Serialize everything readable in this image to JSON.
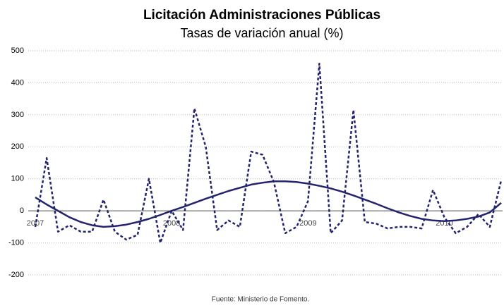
{
  "chart_data": {
    "type": "line",
    "title": "Licitación Administraciones Públicas",
    "subtitle": "Tasas de variación anual (%)",
    "source": "Fuente: Ministerio de Fomento.",
    "categories": [
      "2007",
      null,
      null,
      null,
      null,
      null,
      null,
      null,
      null,
      null,
      null,
      null,
      "2008",
      null,
      null,
      null,
      null,
      null,
      null,
      null,
      null,
      null,
      null,
      null,
      "2009",
      null,
      null,
      null,
      null,
      null,
      null,
      null,
      null,
      null,
      null,
      null,
      "2010",
      null,
      null,
      null,
      null,
      null
    ],
    "series": [
      {
        "color": "#23236e",
        "dash": true,
        "values": [
          -50,
          165,
          -65,
          -45,
          -65,
          -65,
          35,
          -65,
          -90,
          -75,
          100,
          -100,
          0,
          -60,
          320,
          200,
          -60,
          -30,
          -50,
          185,
          175,
          90,
          -70,
          -50,
          30,
          460,
          -70,
          -30,
          315,
          -35,
          -40,
          -55,
          -50,
          -50,
          -55,
          65,
          -20,
          -70,
          -50,
          -10,
          -50,
          95
        ]
      },
      {
        "color": "#23236e",
        "dash": false,
        "values": [
          42,
          20,
          0,
          -20,
          -35,
          -45,
          -50,
          -48,
          -43,
          -35,
          -25,
          -13,
          0,
          12,
          25,
          38,
          50,
          62,
          72,
          82,
          88,
          92,
          92,
          90,
          85,
          78,
          70,
          60,
          48,
          35,
          22,
          8,
          -5,
          -16,
          -25,
          -30,
          -32,
          -30,
          -25,
          -18,
          -5,
          25
        ]
      }
    ],
    "ylim": [
      -200,
      500
    ],
    "yticks": [
      -200,
      -100,
      0,
      100,
      200,
      300,
      400,
      500
    ],
    "grid": true
  }
}
